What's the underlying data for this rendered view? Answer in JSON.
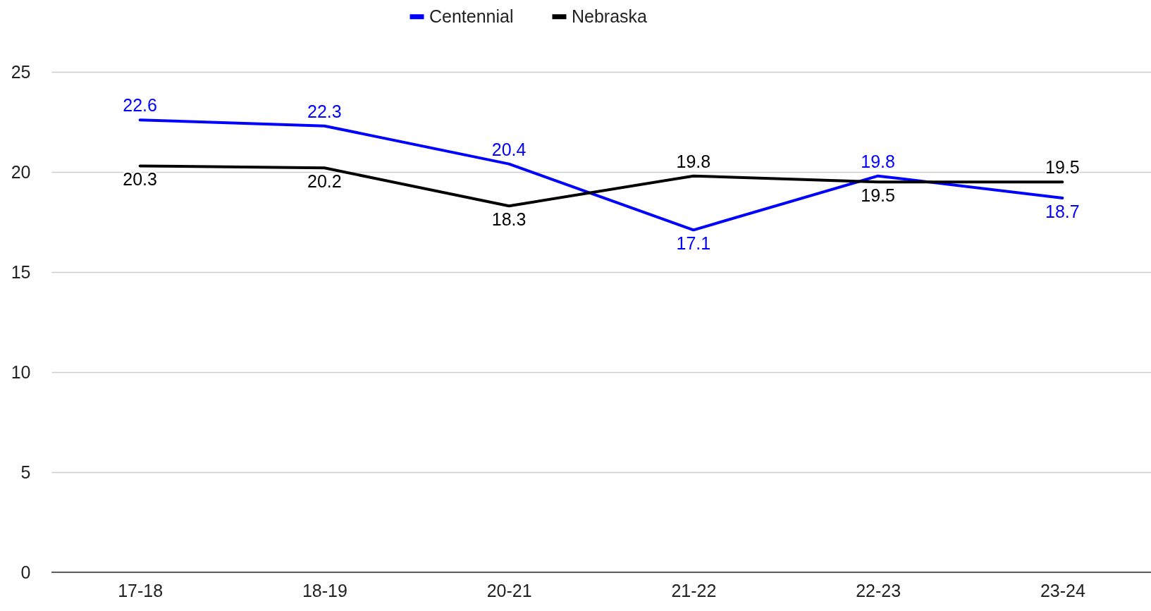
{
  "chart_data": {
    "type": "line",
    "categories": [
      "17-18",
      "18-19",
      "20-21",
      "21-22",
      "22-23",
      "23-24"
    ],
    "series": [
      {
        "name": "Centennial",
        "color": "#0000ff",
        "values": [
          22.6,
          22.3,
          20.4,
          17.1,
          19.8,
          18.7
        ]
      },
      {
        "name": "Nebraska",
        "color": "#000000",
        "values": [
          20.3,
          20.2,
          18.3,
          19.8,
          19.5,
          19.5
        ]
      }
    ],
    "ylim": [
      0,
      25
    ],
    "yticks": [
      0,
      5,
      10,
      15,
      20,
      25
    ],
    "grid": "y",
    "legend": "top",
    "data_labels": true,
    "marker": "none",
    "line_style": "solid"
  }
}
